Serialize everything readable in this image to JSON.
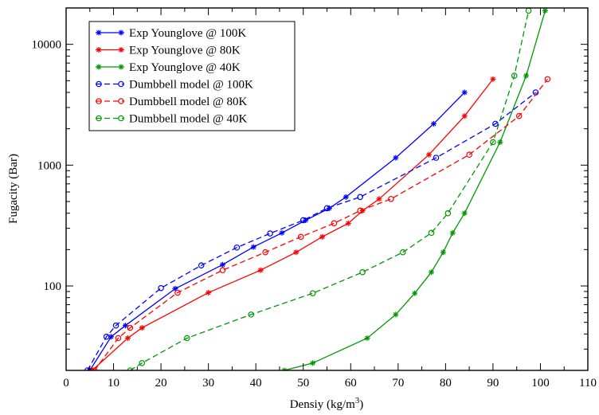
{
  "chart_data": {
    "type": "line",
    "title": "",
    "xlabel": "Densiy (kg/m",
    "xlabel_sup": "3",
    "xlabel_end": ")",
    "ylabel": "Fugacity (Bar)",
    "xlim": [
      0,
      110
    ],
    "ylim": [
      20,
      20000
    ],
    "yscale": "log",
    "x_ticks": [
      0,
      10,
      20,
      30,
      40,
      50,
      60,
      70,
      80,
      90,
      100,
      110
    ],
    "y_ticks": [
      100,
      1000,
      10000
    ],
    "y_tick_labels": [
      "100",
      "1000",
      "10000"
    ],
    "grid": false,
    "legend_position": "top-left",
    "series": [
      {
        "name": "Exp Younglove @ 100K",
        "color": "#0000ff",
        "style": "solid",
        "marker": "star",
        "x": [
          5.0,
          9.5,
          12.5,
          23.0,
          33.0,
          39.5,
          45.5,
          50.5,
          55.5,
          59.0,
          69.5,
          77.5,
          84.0
        ],
        "y": [
          20,
          38,
          47,
          95,
          150,
          210,
          275,
          350,
          440,
          545,
          1150,
          2200,
          4000
        ]
      },
      {
        "name": "Exp Younglove @ 80K",
        "color": "#ff0000",
        "style": "solid",
        "marker": "star",
        "x": [
          5.5,
          13.0,
          16.0,
          30.0,
          41.0,
          48.5,
          54.0,
          59.5,
          62.5,
          66.0,
          76.5,
          84.0,
          90.0
        ],
        "y": [
          20,
          37,
          45,
          88,
          135,
          190,
          255,
          330,
          420,
          525,
          1220,
          2550,
          5150
        ]
      },
      {
        "name": "Exp Younglove @ 40K",
        "color": "#009900",
        "style": "solid",
        "marker": "star",
        "x": [
          46.0,
          52.0,
          63.5,
          69.5,
          73.5,
          77.0,
          79.5,
          81.5,
          84.0,
          91.5,
          97.0,
          101.0
        ],
        "y": [
          20,
          23,
          37,
          58,
          87,
          130,
          190,
          275,
          400,
          1550,
          5500,
          19000
        ]
      },
      {
        "name": "Dumbbell model  @ 100K",
        "color": "#0000ff",
        "style": "dashed",
        "marker": "circle",
        "x": [
          4.5,
          8.5,
          10.5,
          20.0,
          28.5,
          36.0,
          43.0,
          50.0,
          55.0,
          62.0,
          78.0,
          90.5,
          99.0
        ],
        "y": [
          20,
          38,
          47,
          96,
          148,
          208,
          272,
          350,
          440,
          545,
          1150,
          2200,
          4000
        ]
      },
      {
        "name": "Dumbbell model  @ 80K",
        "color": "#ff0000",
        "style": "dashed",
        "marker": "circle",
        "x": [
          6.0,
          11.0,
          13.5,
          23.5,
          33.0,
          42.0,
          49.5,
          56.5,
          62.0,
          68.5,
          85.0,
          95.5,
          101.5
        ],
        "y": [
          20,
          37,
          45,
          88,
          135,
          190,
          255,
          330,
          420,
          525,
          1220,
          2550,
          5150
        ]
      },
      {
        "name": "Dumbbell model  @ 40K",
        "color": "#009900",
        "style": "dashed",
        "marker": "circle",
        "x": [
          13.5,
          16.0,
          25.5,
          39.0,
          52.0,
          62.5,
          71.0,
          77.0,
          80.5,
          90.0,
          94.5,
          97.5
        ],
        "y": [
          20,
          23,
          37,
          58,
          87,
          130,
          190,
          275,
          400,
          1550,
          5500,
          19000
        ]
      }
    ]
  }
}
